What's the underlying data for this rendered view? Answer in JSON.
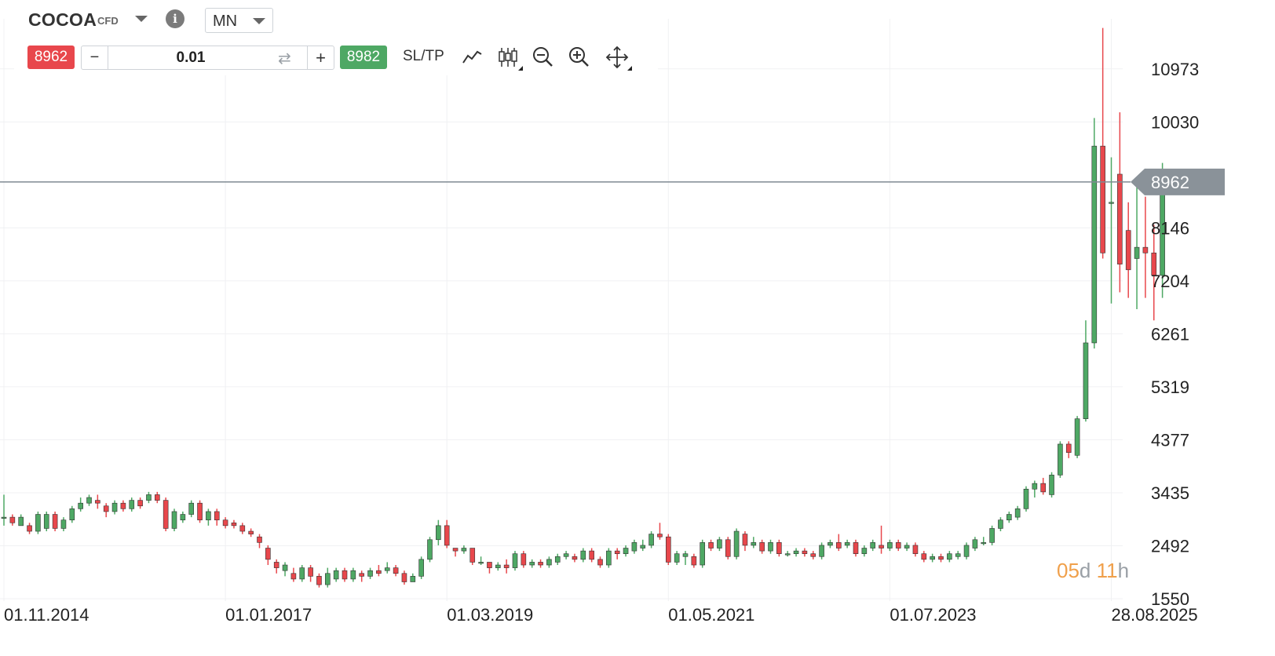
{
  "instrument": {
    "symbol": "COCOA",
    "type": "CFD",
    "info_icon": "info-icon",
    "dropdown_icon": "chevron-down-icon"
  },
  "timeframe": {
    "value": "MN"
  },
  "trade": {
    "sell_price": "8962",
    "buy_price": "8982",
    "volume": "0.01",
    "minus": "−",
    "plus": "+",
    "sltp": "SL/TP",
    "swap_icon": "swap-icon"
  },
  "tools": [
    "line-chart-icon",
    "candlestick-icon",
    "zoom-out-icon",
    "zoom-in-icon",
    "move-icon"
  ],
  "countdown": {
    "days": "05",
    "days_unit": "d",
    "hours": "11",
    "hours_unit": "h"
  },
  "colors": {
    "up": "#4ea864",
    "down": "#e8474c",
    "price_line": "#7f8a92",
    "grid": "#f0f1f3",
    "countdown": "#f0a04b"
  },
  "chart_data": {
    "type": "candlestick",
    "title": "",
    "y_ticks": [
      10973,
      10030,
      8146,
      7204,
      6261,
      5319,
      4377,
      3435,
      2492,
      1550
    ],
    "x_tick_labels": [
      "01.11.2014",
      "01.01.2017",
      "01.03.2019",
      "01.05.2021",
      "01.07.2023",
      "28.08.2025"
    ],
    "x_tick_month_index": [
      0,
      26,
      52,
      78,
      104,
      130
    ],
    "current_price": 8962,
    "ylim": [
      1500,
      11950
    ],
    "grid": true,
    "start_month": "2014-11",
    "candles": [
      [
        3000,
        3000,
        3400,
        2850
      ],
      [
        3000,
        2900,
        3050,
        2850
      ],
      [
        2850,
        3000,
        3050,
        2850
      ],
      [
        2850,
        2750,
        2900,
        2700
      ],
      [
        2750,
        3050,
        3100,
        2700
      ],
      [
        2800,
        3050,
        3100,
        2750
      ],
      [
        3050,
        2800,
        3100,
        2750
      ],
      [
        2800,
        2950,
        3000,
        2750
      ],
      [
        2950,
        3150,
        3200,
        2900
      ],
      [
        3150,
        3250,
        3350,
        3100
      ],
      [
        3250,
        3350,
        3400,
        3200
      ],
      [
        3300,
        3250,
        3400,
        3150
      ],
      [
        3200,
        3100,
        3250,
        3000
      ],
      [
        3100,
        3250,
        3300,
        3050
      ],
      [
        3250,
        3150,
        3300,
        3100
      ],
      [
        3150,
        3300,
        3350,
        3100
      ],
      [
        3300,
        3200,
        3350,
        3150
      ],
      [
        3300,
        3400,
        3450,
        3250
      ],
      [
        3400,
        3300,
        3450,
        3250
      ],
      [
        3300,
        2800,
        3350,
        2750
      ],
      [
        2800,
        3100,
        3150,
        2750
      ],
      [
        2950,
        3050,
        3100,
        2900
      ],
      [
        3050,
        3250,
        3300,
        3000
      ],
      [
        3250,
        2950,
        3300,
        2900
      ],
      [
        2950,
        3100,
        3150,
        2850
      ],
      [
        3100,
        2950,
        3150,
        2850
      ],
      [
        2950,
        2850,
        3000,
        2800
      ],
      [
        2900,
        2850,
        2950,
        2800
      ],
      [
        2850,
        2750,
        2900,
        2700
      ],
      [
        2750,
        2700,
        2800,
        2650
      ],
      [
        2650,
        2550,
        2700,
        2450
      ],
      [
        2450,
        2250,
        2500,
        2150
      ],
      [
        2200,
        2100,
        2250,
        2000
      ],
      [
        2050,
        2150,
        2200,
        1950
      ],
      [
        2000,
        1900,
        2100,
        1850
      ],
      [
        1900,
        2100,
        2150,
        1850
      ],
      [
        2100,
        1950,
        2150,
        1850
      ],
      [
        1950,
        1800,
        2000,
        1750
      ],
      [
        1800,
        2000,
        2100,
        1750
      ],
      [
        1900,
        2050,
        2100,
        1850
      ],
      [
        2050,
        1900,
        2100,
        1850
      ],
      [
        1900,
        2050,
        2100,
        1850
      ],
      [
        2000,
        1950,
        2050,
        1850
      ],
      [
        1950,
        2050,
        2100,
        1900
      ],
      [
        2050,
        2000,
        2150,
        1950
      ],
      [
        2050,
        2100,
        2200,
        2000
      ],
      [
        2100,
        2000,
        2150,
        1950
      ],
      [
        2000,
        1850,
        2050,
        1800
      ],
      [
        1850,
        1950,
        2000,
        1850
      ],
      [
        1950,
        2250,
        2300,
        1900
      ],
      [
        2250,
        2600,
        2650,
        2200
      ],
      [
        2600,
        2850,
        2950,
        2500
      ],
      [
        2850,
        2500,
        2950,
        2450
      ],
      [
        2450,
        2400,
        2450,
        2300
      ],
      [
        2400,
        2450,
        2500,
        2350
      ],
      [
        2450,
        2200,
        2450,
        2150
      ],
      [
        2200,
        2200,
        2300,
        2150
      ],
      [
        2200,
        2100,
        2200,
        2000
      ],
      [
        2100,
        2150,
        2200,
        2050
      ],
      [
        2150,
        2100,
        2250,
        2000
      ],
      [
        2100,
        2350,
        2400,
        2050
      ],
      [
        2350,
        2150,
        2400,
        2100
      ],
      [
        2150,
        2200,
        2250,
        2100
      ],
      [
        2200,
        2150,
        2250,
        2100
      ],
      [
        2150,
        2250,
        2300,
        2100
      ],
      [
        2200,
        2300,
        2350,
        2150
      ],
      [
        2300,
        2350,
        2400,
        2250
      ],
      [
        2300,
        2250,
        2350,
        2200
      ],
      [
        2250,
        2400,
        2450,
        2200
      ],
      [
        2400,
        2250,
        2450,
        2200
      ],
      [
        2250,
        2150,
        2300,
        2100
      ],
      [
        2150,
        2400,
        2450,
        2100
      ],
      [
        2400,
        2350,
        2450,
        2250
      ],
      [
        2350,
        2450,
        2500,
        2300
      ],
      [
        2400,
        2550,
        2600,
        2350
      ],
      [
        2450,
        2500,
        2600,
        2400
      ],
      [
        2500,
        2700,
        2750,
        2450
      ],
      [
        2700,
        2650,
        2900,
        2600
      ],
      [
        2650,
        2200,
        2700,
        2150
      ],
      [
        2200,
        2350,
        2400,
        2150
      ],
      [
        2300,
        2350,
        2400,
        2150
      ],
      [
        2300,
        2150,
        2350,
        2100
      ],
      [
        2150,
        2550,
        2600,
        2100
      ],
      [
        2550,
        2450,
        2600,
        2400
      ],
      [
        2450,
        2600,
        2650,
        2400
      ],
      [
        2600,
        2300,
        2650,
        2250
      ],
      [
        2300,
        2750,
        2800,
        2250
      ],
      [
        2700,
        2500,
        2750,
        2400
      ],
      [
        2500,
        2550,
        2650,
        2450
      ],
      [
        2550,
        2400,
        2600,
        2350
      ],
      [
        2400,
        2550,
        2600,
        2350
      ],
      [
        2550,
        2350,
        2600,
        2300
      ],
      [
        2350,
        2350,
        2400,
        2300
      ],
      [
        2350,
        2400,
        2450,
        2300
      ],
      [
        2400,
        2350,
        2450,
        2300
      ],
      [
        2350,
        2300,
        2400,
        2250
      ],
      [
        2300,
        2500,
        2550,
        2250
      ],
      [
        2500,
        2550,
        2600,
        2450
      ],
      [
        2550,
        2450,
        2700,
        2400
      ],
      [
        2500,
        2550,
        2600,
        2450
      ],
      [
        2550,
        2350,
        2600,
        2300
      ],
      [
        2350,
        2450,
        2500,
        2300
      ],
      [
        2450,
        2550,
        2600,
        2400
      ],
      [
        2500,
        2450,
        2850,
        2350
      ],
      [
        2450,
        2550,
        2600,
        2400
      ],
      [
        2550,
        2450,
        2600,
        2400
      ],
      [
        2450,
        2500,
        2550,
        2400
      ],
      [
        2500,
        2350,
        2550,
        2300
      ],
      [
        2350,
        2250,
        2400,
        2200
      ],
      [
        2250,
        2300,
        2350,
        2200
      ],
      [
        2300,
        2250,
        2350,
        2200
      ],
      [
        2250,
        2350,
        2400,
        2200
      ],
      [
        2300,
        2350,
        2400,
        2250
      ],
      [
        2300,
        2500,
        2550,
        2250
      ],
      [
        2450,
        2600,
        2650,
        2400
      ],
      [
        2550,
        2550,
        2650,
        2500
      ],
      [
        2550,
        2800,
        2850,
        2500
      ],
      [
        2800,
        2950,
        3000,
        2750
      ],
      [
        2950,
        3050,
        3100,
        2900
      ],
      [
        3000,
        3150,
        3200,
        2950
      ],
      [
        3150,
        3500,
        3550,
        3100
      ],
      [
        3500,
        3600,
        3650,
        3350
      ],
      [
        3600,
        3450,
        3700,
        3400
      ],
      [
        3400,
        3750,
        3800,
        3350
      ],
      [
        3750,
        4300,
        4350,
        3700
      ],
      [
        4300,
        4150,
        4350,
        4050
      ],
      [
        4100,
        4750,
        4800,
        4050
      ],
      [
        4750,
        6100,
        6500,
        4700
      ],
      [
        6100,
        9600,
        10100,
        6000
      ],
      [
        9600,
        7700,
        11700,
        7600
      ],
      [
        8600,
        8600,
        9400,
        6800
      ],
      [
        9100,
        7500,
        10200,
        7000
      ],
      [
        8100,
        7400,
        8600,
        6900
      ],
      [
        7600,
        7800,
        8900,
        6700
      ],
      [
        7800,
        7700,
        8700,
        6900
      ],
      [
        7700,
        7300,
        8200,
        6500
      ],
      [
        7300,
        8962,
        9300,
        6900
      ]
    ]
  }
}
